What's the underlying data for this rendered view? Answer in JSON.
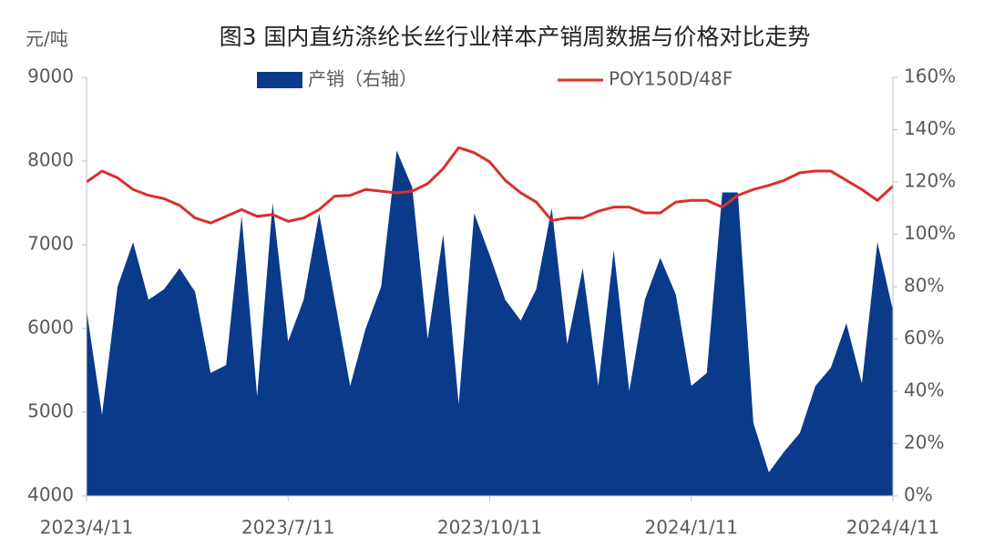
{
  "chart_data": {
    "type": "area-line",
    "title": "图3 国内直纺涤纶长丝行业样本产销周数据与价格对比走势",
    "y_label": "元/吨",
    "categories": [
      "2023/4/11",
      null,
      null,
      null,
      null,
      null,
      null,
      null,
      null,
      null,
      null,
      null,
      null,
      "2023/7/11",
      null,
      null,
      null,
      null,
      null,
      null,
      null,
      null,
      null,
      null,
      null,
      null,
      "2023/10/11",
      null,
      null,
      null,
      null,
      null,
      null,
      null,
      null,
      null,
      null,
      null,
      null,
      "2024/1/11",
      null,
      null,
      null,
      null,
      null,
      null,
      null,
      null,
      null,
      null,
      null,
      null,
      "2024/4/11"
    ],
    "series": [
      {
        "name": "产销（右轴）",
        "color": "#0a3a8a",
        "kind": "area",
        "axis": "y2",
        "values": [
          71,
          31,
          80,
          97,
          75,
          79,
          87,
          78,
          47,
          50,
          107,
          38,
          112,
          59,
          75,
          108,
          75,
          42,
          64,
          80,
          132,
          118,
          60,
          100,
          35,
          108,
          92,
          75,
          67,
          79,
          110,
          58,
          87,
          42,
          94,
          40,
          75,
          91,
          77,
          42,
          47,
          116,
          116,
          28,
          9,
          17,
          24,
          42,
          49,
          66,
          43,
          97,
          71
        ]
      },
      {
        "name": "POY150D/48F",
        "color": "#d9302c",
        "kind": "line",
        "values": [
          7750,
          7880,
          7800,
          7660,
          7590,
          7550,
          7470,
          7320,
          7260,
          7340,
          7420,
          7340,
          7360,
          7280,
          7320,
          7420,
          7580,
          7590,
          7660,
          7640,
          7620,
          7640,
          7730,
          7910,
          8160,
          8100,
          7990,
          7770,
          7620,
          7510,
          7290,
          7320,
          7320,
          7400,
          7450,
          7450,
          7380,
          7380,
          7510,
          7530,
          7530,
          7450,
          7590,
          7660,
          7710,
          7770,
          7860,
          7880,
          7880,
          7770,
          7660,
          7530,
          7700
        ]
      }
    ],
    "ylim": [
      4000,
      9000
    ],
    "yticks": [
      4000,
      5000,
      6000,
      7000,
      8000,
      9000
    ],
    "y2lim": [
      0,
      160
    ],
    "y2ticks": [
      {
        "value": 0,
        "label": "0%"
      },
      {
        "value": 20,
        "label": "20%"
      },
      {
        "value": 40,
        "label": "40%"
      },
      {
        "value": 60,
        "label": "60%"
      },
      {
        "value": 80,
        "label": "80%"
      },
      {
        "value": 100,
        "label": "100%"
      },
      {
        "value": 120,
        "label": "120%"
      },
      {
        "value": 140,
        "label": "140%"
      },
      {
        "value": 160,
        "label": "160%"
      }
    ],
    "grid": false,
    "legend": "top"
  }
}
